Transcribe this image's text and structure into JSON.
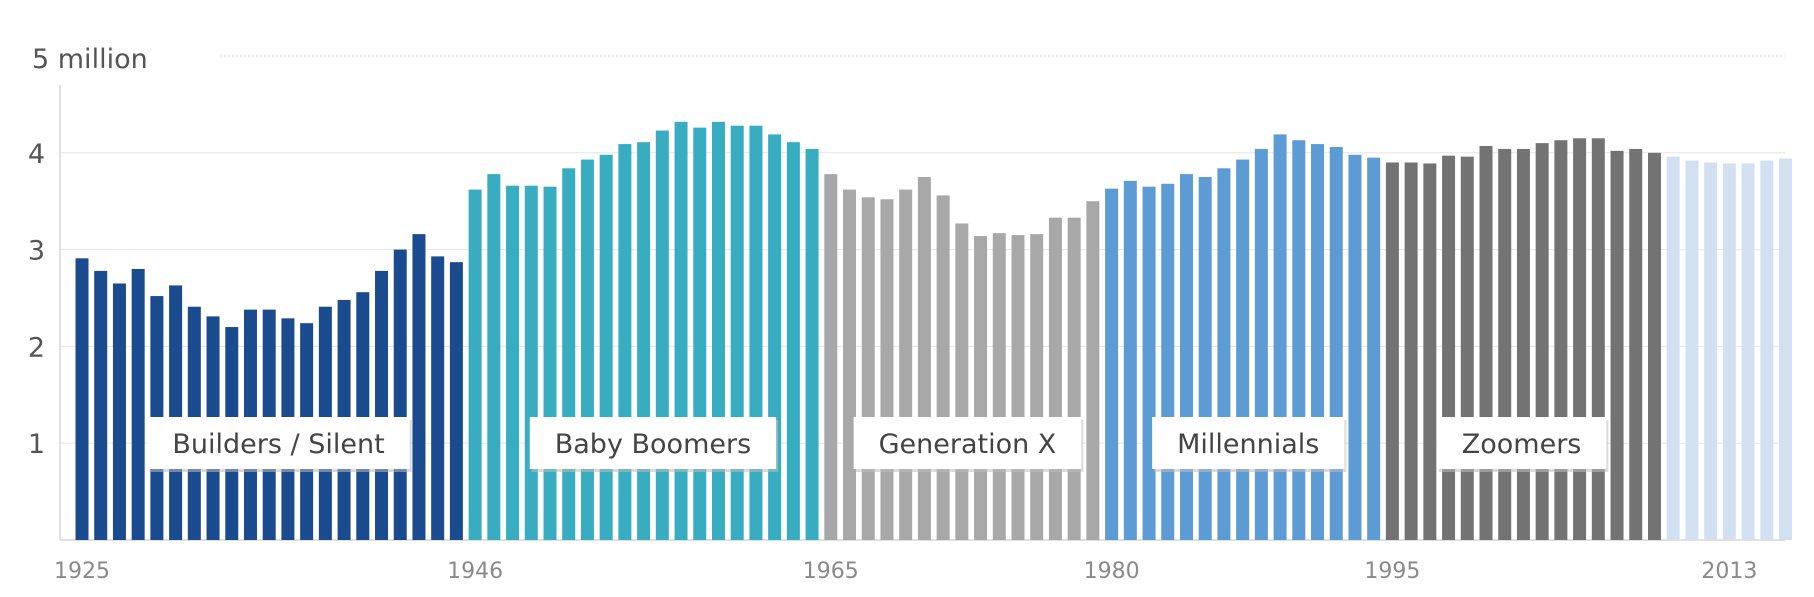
{
  "chart_data": {
    "type": "bar",
    "yunit_label": "5 million",
    "ylim": [
      0,
      5
    ],
    "y_ticks": [
      1,
      2,
      3,
      4
    ],
    "x_tick_labels": [
      {
        "year": 1925,
        "label": "1925"
      },
      {
        "year": 1946,
        "label": "1946"
      },
      {
        "year": 1965,
        "label": "1965"
      },
      {
        "year": 1980,
        "label": "1980"
      },
      {
        "year": 1995,
        "label": "1995"
      },
      {
        "year": 2013,
        "label": "2013"
      }
    ],
    "grid": true,
    "series": [
      {
        "name": "Builders / Silent",
        "color": "#1a4b8e",
        "years": [
          1925,
          1926,
          1927,
          1928,
          1929,
          1930,
          1931,
          1932,
          1933,
          1934,
          1935,
          1936,
          1937,
          1938,
          1939,
          1940,
          1941,
          1942,
          1943,
          1944,
          1945
        ],
        "values": [
          2.91,
          2.78,
          2.65,
          2.8,
          2.52,
          2.63,
          2.41,
          2.31,
          2.2,
          2.38,
          2.38,
          2.29,
          2.24,
          2.41,
          2.48,
          2.56,
          2.78,
          3.0,
          3.16,
          2.93,
          2.87
        ]
      },
      {
        "name": "Baby Boomers",
        "color": "#38adc2",
        "years": [
          1946,
          1947,
          1948,
          1949,
          1950,
          1951,
          1952,
          1953,
          1954,
          1955,
          1956,
          1957,
          1958,
          1959,
          1960,
          1961,
          1962,
          1963,
          1964
        ],
        "values": [
          3.62,
          3.78,
          3.66,
          3.66,
          3.65,
          3.84,
          3.93,
          3.98,
          4.09,
          4.11,
          4.23,
          4.32,
          4.26,
          4.32,
          4.28,
          4.28,
          4.19,
          4.11,
          4.04
        ]
      },
      {
        "name": "Generation X",
        "color": "#a8a8a8",
        "years": [
          1965,
          1966,
          1967,
          1968,
          1969,
          1970,
          1971,
          1972,
          1973,
          1974,
          1975,
          1976,
          1977,
          1978,
          1979
        ],
        "values": [
          3.78,
          3.62,
          3.54,
          3.52,
          3.62,
          3.75,
          3.56,
          3.27,
          3.14,
          3.17,
          3.15,
          3.16,
          3.33,
          3.33,
          3.5
        ]
      },
      {
        "name": "Millennials",
        "color": "#5d9bd5",
        "years": [
          1980,
          1981,
          1982,
          1983,
          1984,
          1985,
          1986,
          1987,
          1988,
          1989,
          1990,
          1991,
          1992,
          1993,
          1994
        ],
        "values": [
          3.63,
          3.71,
          3.65,
          3.68,
          3.78,
          3.75,
          3.84,
          3.93,
          4.04,
          4.19,
          4.13,
          4.09,
          4.06,
          3.98,
          3.95
        ]
      },
      {
        "name": "Zoomers",
        "color": "#737373",
        "years": [
          1995,
          1996,
          1997,
          1998,
          1999,
          2000,
          2001,
          2002,
          2003,
          2004,
          2005,
          2006,
          2007,
          2008,
          2009
        ],
        "values": [
          3.9,
          3.9,
          3.89,
          3.97,
          3.96,
          4.07,
          4.04,
          4.04,
          4.1,
          4.13,
          4.15,
          4.15,
          4.02,
          4.04,
          4.0
        ]
      },
      {
        "name": "",
        "color": "#d2e0f1",
        "years": [
          2010,
          2011,
          2012,
          2013,
          2014,
          2015,
          2016
        ],
        "values": [
          3.96,
          3.92,
          3.9,
          3.89,
          3.89,
          3.92,
          3.94
        ]
      }
    ],
    "generation_labels": [
      {
        "text": "Builders / Silent",
        "center_year": 1935.5
      },
      {
        "text": "Baby Boomers",
        "center_year": 1955.5
      },
      {
        "text": "Generation X",
        "center_year": 1972.3
      },
      {
        "text": "Millennials",
        "center_year": 1987.3
      },
      {
        "text": "Zoomers",
        "center_year": 2001.9
      }
    ]
  }
}
